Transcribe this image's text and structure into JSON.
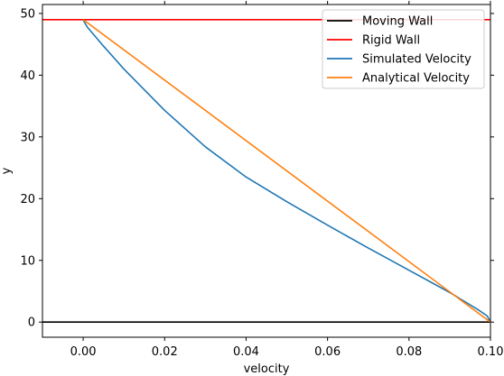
{
  "chart_data": {
    "type": "line",
    "xlabel": "velocity",
    "ylabel": "y",
    "xlim": [
      -0.01,
      0.1
    ],
    "ylim": [
      -2.45,
      51.45
    ],
    "x_ticks": [
      0.0,
      0.02,
      0.04,
      0.06,
      0.08,
      0.1
    ],
    "x_tick_labels": [
      "0.00",
      "0.02",
      "0.04",
      "0.06",
      "0.08",
      "0.10"
    ],
    "y_ticks": [
      0,
      10,
      20,
      30,
      40,
      50
    ],
    "y_tick_labels": [
      "0",
      "10",
      "20",
      "30",
      "40",
      "50"
    ],
    "grid": false,
    "legend_position": "top-right",
    "series": [
      {
        "name": "Moving Wall",
        "color": "#000000",
        "x": [
          -0.01,
          0.1
        ],
        "y": [
          0,
          0
        ]
      },
      {
        "name": "Rigid Wall",
        "color": "#ff0000",
        "x": [
          -0.01,
          0.1
        ],
        "y": [
          49,
          49
        ]
      },
      {
        "name": "Simulated Velocity",
        "color": "#1f77b4",
        "x": [
          0.1,
          0.0992,
          0.097,
          0.09,
          0.08,
          0.07,
          0.06,
          0.05,
          0.04,
          0.03,
          0.02,
          0.01,
          0.005,
          0.001,
          0.0003,
          0.0
        ],
        "y": [
          0,
          1,
          2,
          4.8,
          8.4,
          12.0,
          15.7,
          19.5,
          23.5,
          28.4,
          34.3,
          41.0,
          44.7,
          47.8,
          48.6,
          49
        ]
      },
      {
        "name": "Analytical Velocity",
        "color": "#ff7f0e",
        "x": [
          0.1,
          0.0
        ],
        "y": [
          0,
          49
        ]
      }
    ]
  }
}
